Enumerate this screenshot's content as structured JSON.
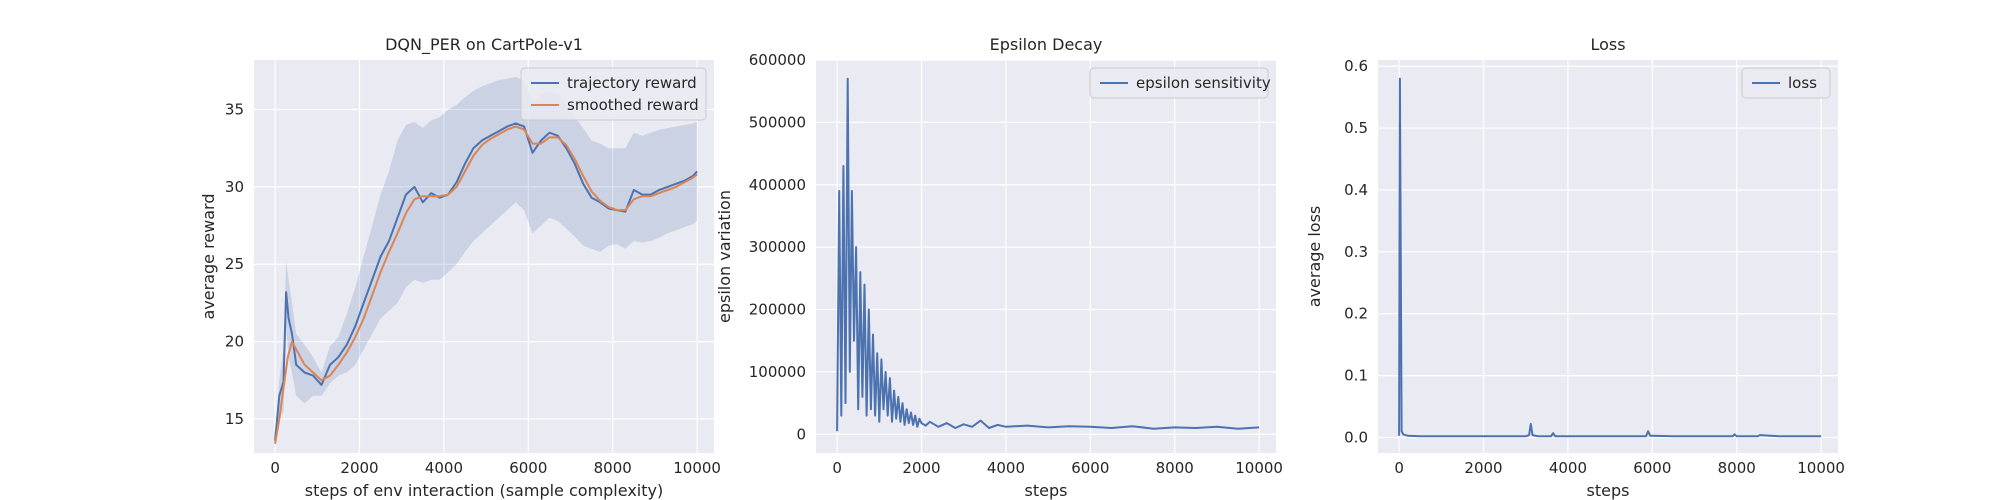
{
  "colors": {
    "background": "#eaeaf2",
    "grid": "#ffffff",
    "blue": "#4c72b0",
    "orange": "#dd8452",
    "band": "#4c72b0"
  },
  "chart_data": [
    {
      "type": "line",
      "title": "DQN_PER on CartPole-v1",
      "xlabel": "steps of env interaction (sample complexity)",
      "ylabel": "average reward",
      "xlim": [
        -500,
        10400
      ],
      "ylim": [
        12.8,
        38.2
      ],
      "xticks": [
        0,
        2000,
        4000,
        6000,
        8000,
        10000
      ],
      "yticks": [
        15,
        20,
        25,
        30,
        35
      ],
      "xtick_labels": [
        "0",
        "2000",
        "4000",
        "6000",
        "8000",
        "10000"
      ],
      "ytick_labels": [
        "15",
        "20",
        "25",
        "30",
        "35"
      ],
      "grid": true,
      "legend": "top-right",
      "series": [
        {
          "name": "trajectory reward",
          "color": "#4c72b0",
          "x": [
            0,
            100,
            200,
            260,
            320,
            400,
            500,
            700,
            900,
            1100,
            1300,
            1500,
            1700,
            1900,
            2100,
            2300,
            2500,
            2700,
            2900,
            3100,
            3300,
            3500,
            3700,
            3900,
            4100,
            4300,
            4500,
            4700,
            4900,
            5100,
            5300,
            5500,
            5700,
            5900,
            6100,
            6300,
            6500,
            6700,
            6900,
            7100,
            7300,
            7500,
            7700,
            7900,
            8100,
            8300,
            8500,
            8700,
            8900,
            9100,
            9300,
            9500,
            9700,
            9900,
            10000
          ],
          "y": [
            13.6,
            16.5,
            17.4,
            23.2,
            21.5,
            20.5,
            18.5,
            18.0,
            17.8,
            17.2,
            18.5,
            19.0,
            19.8,
            21.0,
            22.5,
            24.0,
            25.5,
            26.5,
            28.0,
            29.5,
            30.0,
            29.0,
            29.6,
            29.3,
            29.5,
            30.3,
            31.5,
            32.5,
            33.0,
            33.3,
            33.6,
            33.9,
            34.1,
            33.9,
            32.2,
            33.0,
            33.5,
            33.3,
            32.5,
            31.5,
            30.2,
            29.3,
            29.0,
            28.6,
            28.5,
            28.4,
            29.8,
            29.5,
            29.5,
            29.8,
            30.0,
            30.2,
            30.4,
            30.7,
            31.0
          ]
        },
        {
          "name": "smoothed reward",
          "color": "#dd8452",
          "x": [
            0,
            100,
            200,
            300,
            400,
            500,
            700,
            900,
            1100,
            1300,
            1500,
            1700,
            1900,
            2100,
            2300,
            2500,
            2700,
            2900,
            3100,
            3300,
            3500,
            3700,
            3900,
            4100,
            4300,
            4500,
            4700,
            4900,
            5100,
            5300,
            5500,
            5700,
            5900,
            6100,
            6300,
            6500,
            6700,
            6900,
            7100,
            7300,
            7500,
            7700,
            7900,
            8100,
            8300,
            8500,
            8700,
            8900,
            9100,
            9300,
            9500,
            9700,
            9900,
            10000
          ],
          "y": [
            13.4,
            15.0,
            17.0,
            19.0,
            20.0,
            19.5,
            18.5,
            18.0,
            17.5,
            17.8,
            18.5,
            19.3,
            20.3,
            21.5,
            23.0,
            24.5,
            25.8,
            27.0,
            28.3,
            29.2,
            29.4,
            29.4,
            29.4,
            29.5,
            30.0,
            31.0,
            32.0,
            32.7,
            33.1,
            33.4,
            33.7,
            33.9,
            33.7,
            32.8,
            32.8,
            33.2,
            33.2,
            32.7,
            31.8,
            30.7,
            29.7,
            29.1,
            28.7,
            28.5,
            28.5,
            29.2,
            29.4,
            29.4,
            29.6,
            29.8,
            30.0,
            30.3,
            30.6,
            30.8
          ]
        }
      ],
      "band": {
        "x": [
          0,
          100,
          200,
          260,
          320,
          400,
          500,
          700,
          900,
          1100,
          1300,
          1500,
          1700,
          1900,
          2100,
          2300,
          2500,
          2700,
          2900,
          3100,
          3300,
          3500,
          3700,
          3900,
          4100,
          4300,
          4500,
          4700,
          4900,
          5100,
          5300,
          5500,
          5700,
          5900,
          6100,
          6300,
          6500,
          6700,
          6900,
          7100,
          7300,
          7500,
          7700,
          7900,
          8100,
          8300,
          8500,
          8700,
          8900,
          9100,
          9300,
          9500,
          9700,
          9900,
          10000
        ],
        "lower": [
          13.2,
          15.0,
          15.5,
          21.0,
          19.0,
          18.0,
          16.5,
          16.0,
          16.5,
          16.5,
          17.3,
          17.8,
          18.0,
          18.5,
          19.5,
          20.5,
          21.5,
          22.0,
          22.5,
          23.5,
          24.0,
          23.8,
          24.0,
          24.0,
          24.5,
          25.0,
          25.8,
          26.5,
          27.0,
          27.5,
          28.0,
          28.5,
          29.0,
          28.5,
          27.0,
          27.5,
          28.0,
          27.8,
          27.3,
          26.8,
          26.2,
          26.0,
          25.8,
          26.2,
          26.3,
          26.0,
          26.5,
          26.4,
          26.5,
          26.7,
          27.0,
          27.2,
          27.4,
          27.6,
          27.8
        ],
        "upper": [
          14.0,
          17.5,
          19.5,
          25.2,
          24.0,
          22.5,
          20.5,
          19.8,
          19.0,
          18.0,
          19.7,
          20.3,
          21.8,
          23.5,
          25.5,
          27.5,
          29.5,
          31.0,
          33.0,
          34.0,
          34.2,
          33.8,
          34.3,
          34.5,
          35.0,
          35.3,
          35.8,
          36.2,
          36.5,
          36.7,
          36.9,
          37.0,
          37.1,
          36.9,
          35.5,
          36.0,
          36.2,
          36.0,
          35.3,
          34.5,
          33.8,
          33.0,
          32.8,
          32.5,
          32.5,
          32.5,
          33.5,
          33.3,
          33.5,
          33.7,
          33.8,
          33.9,
          34.0,
          34.1,
          34.2
        ]
      }
    },
    {
      "type": "line",
      "title": "Epsilon Decay",
      "xlabel": "steps",
      "ylabel": "epsilon variation",
      "xlim": [
        -500,
        10400
      ],
      "ylim": [
        -30000,
        600000
      ],
      "xticks": [
        0,
        2000,
        4000,
        6000,
        8000,
        10000
      ],
      "yticks": [
        0,
        100000,
        200000,
        300000,
        400000,
        500000,
        600000
      ],
      "xtick_labels": [
        "0",
        "2000",
        "4000",
        "6000",
        "8000",
        "10000"
      ],
      "ytick_labels": [
        "0",
        "100000",
        "200000",
        "300000",
        "400000",
        "500000",
        "600000"
      ],
      "grid": true,
      "legend": "top-right",
      "series": [
        {
          "name": "epsilon sensitivity",
          "color": "#4c72b0",
          "x": [
            0,
            50,
            100,
            150,
            200,
            250,
            300,
            350,
            400,
            450,
            500,
            550,
            600,
            650,
            700,
            750,
            800,
            850,
            900,
            950,
            1000,
            1050,
            1100,
            1150,
            1200,
            1250,
            1300,
            1350,
            1400,
            1450,
            1500,
            1550,
            1600,
            1650,
            1700,
            1750,
            1800,
            1850,
            1900,
            1950,
            2000,
            2100,
            2200,
            2400,
            2600,
            2800,
            3000,
            3200,
            3400,
            3600,
            3800,
            4000,
            4500,
            5000,
            5500,
            6000,
            6500,
            7000,
            7500,
            8000,
            8500,
            9000,
            9500,
            10000
          ],
          "y": [
            5000,
            390000,
            30000,
            430000,
            50000,
            570000,
            100000,
            390000,
            150000,
            300000,
            40000,
            260000,
            60000,
            240000,
            30000,
            200000,
            40000,
            160000,
            30000,
            130000,
            20000,
            120000,
            40000,
            100000,
            30000,
            90000,
            20000,
            70000,
            25000,
            60000,
            20000,
            50000,
            15000,
            40000,
            18000,
            35000,
            15000,
            30000,
            12000,
            25000,
            18000,
            14000,
            20000,
            12000,
            18000,
            10000,
            16000,
            12000,
            22000,
            10000,
            15000,
            12000,
            14000,
            11000,
            13000,
            12000,
            10000,
            13000,
            9000,
            11000,
            10000,
            12000,
            9000,
            11000
          ]
        }
      ]
    },
    {
      "type": "line",
      "title": "Loss",
      "xlabel": "steps",
      "ylabel": "average loss",
      "xlim": [
        -500,
        10400
      ],
      "ylim": [
        -0.025,
        0.61
      ],
      "xticks": [
        0,
        2000,
        4000,
        6000,
        8000,
        10000
      ],
      "yticks": [
        0.0,
        0.1,
        0.2,
        0.3,
        0.4,
        0.5,
        0.6
      ],
      "xtick_labels": [
        "0",
        "2000",
        "4000",
        "6000",
        "8000",
        "10000"
      ],
      "ytick_labels": [
        "0.0",
        "0.1",
        "0.2",
        "0.3",
        "0.4",
        "0.5",
        "0.6"
      ],
      "grid": true,
      "legend": "top-right",
      "series": [
        {
          "name": "loss",
          "color": "#4c72b0",
          "x": [
            0,
            20,
            60,
            100,
            200,
            500,
            1000,
            1500,
            2000,
            2500,
            3000,
            3080,
            3120,
            3160,
            3300,
            3500,
            3600,
            3650,
            3700,
            4000,
            5000,
            5850,
            5900,
            5950,
            6500,
            7000,
            7900,
            7950,
            8000,
            8500,
            8550,
            9000,
            10000
          ],
          "y": [
            0.003,
            0.58,
            0.01,
            0.005,
            0.003,
            0.002,
            0.002,
            0.002,
            0.002,
            0.002,
            0.002,
            0.004,
            0.022,
            0.004,
            0.002,
            0.002,
            0.002,
            0.007,
            0.002,
            0.002,
            0.002,
            0.002,
            0.01,
            0.003,
            0.002,
            0.002,
            0.002,
            0.005,
            0.002,
            0.002,
            0.004,
            0.002,
            0.002
          ]
        }
      ]
    }
  ]
}
